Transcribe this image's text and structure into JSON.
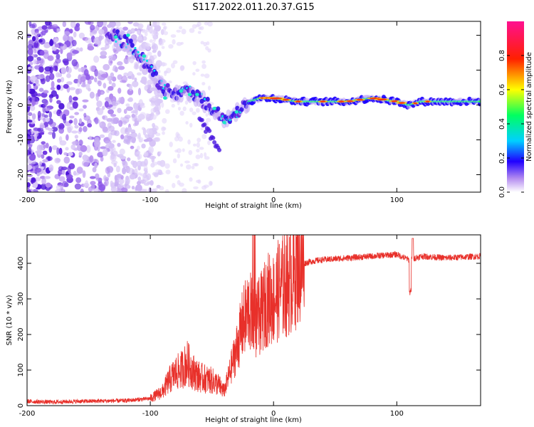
{
  "title": "S117.2022.011.20.37.G15",
  "chart_data": [
    {
      "type": "heatmap",
      "xlabel": "Height of straight line (km)",
      "ylabel": "Frequency (Hz)",
      "xlim": [
        -200,
        168
      ],
      "ylim": [
        -25,
        24
      ],
      "xticks": [
        "-200",
        "-100",
        "0",
        "100"
      ],
      "yticks": [
        "20",
        "10",
        "0",
        "-10",
        "-20"
      ],
      "colorbar": {
        "label": "Normalized spectral amplitude",
        "range": [
          0,
          1
        ],
        "ticks": [
          "0.0",
          "0.2",
          "0.4",
          "0.6",
          "0.8"
        ]
      },
      "ridge": {
        "x": [
          -130,
          -120,
          -110,
          -100,
          -90,
          -80,
          -70,
          -60,
          -50,
          -40,
          -30,
          -20,
          -10,
          0,
          20,
          40,
          60,
          80,
          100,
          110,
          120,
          140,
          168
        ],
        "y": [
          20,
          18,
          15,
          10,
          5,
          3,
          4,
          2,
          -1,
          -4,
          -2,
          1,
          2,
          2,
          1,
          1,
          1,
          2,
          1,
          0,
          1,
          1,
          1
        ]
      }
    },
    {
      "type": "line",
      "xlabel": "Height of straight line (km)",
      "ylabel": "SNR (10 * v/v)",
      "xlim": [
        -200,
        168
      ],
      "ylim": [
        0,
        480
      ],
      "xticks": [
        "-200",
        "-100",
        "0",
        "100"
      ],
      "yticks": [
        "0",
        "100",
        "200",
        "300",
        "400"
      ],
      "series": [
        {
          "name": "SNR",
          "color": "#e8302a",
          "x": [
            -200,
            -180,
            -160,
            -140,
            -120,
            -100,
            -95,
            -90,
            -85,
            -80,
            -75,
            -70,
            -65,
            -60,
            -55,
            -50,
            -45,
            -40,
            -35,
            -30,
            -25,
            -20,
            -15,
            -10,
            -5,
            0,
            5,
            10,
            15,
            20,
            25,
            30,
            40,
            60,
            80,
            100,
            110,
            120,
            140,
            168
          ],
          "values": [
            12,
            10,
            12,
            13,
            14,
            20,
            30,
            40,
            70,
            90,
            100,
            120,
            95,
            80,
            75,
            70,
            60,
            40,
            100,
            160,
            230,
            270,
            230,
            260,
            300,
            300,
            330,
            340,
            360,
            400,
            400,
            405,
            410,
            415,
            420,
            425,
            410,
            420,
            415,
            420
          ]
        }
      ]
    }
  ]
}
